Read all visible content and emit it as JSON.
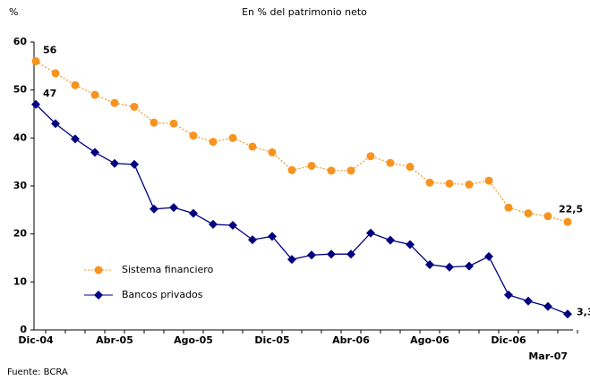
{
  "chart_data": {
    "type": "line",
    "title": "En % del patrimonio neto",
    "y_label": "%",
    "source": "Fuente: BCRA",
    "categories": [
      "Dic-04",
      null,
      null,
      null,
      "Abr-05",
      null,
      null,
      null,
      "Ago-05",
      null,
      null,
      null,
      "Dic-05",
      null,
      null,
      null,
      "Abr-06",
      null,
      null,
      null,
      "Ago-06",
      null,
      null,
      null,
      "Dic-06",
      null,
      null,
      "Mar-07"
    ],
    "series": [
      {
        "name": "Sistema financiero",
        "color": "#f7931e",
        "marker": "circle",
        "dash": "dotted",
        "values": [
          56,
          53.5,
          51,
          49,
          47.3,
          46.5,
          43.2,
          43,
          40.5,
          39.2,
          40,
          38.2,
          37,
          33.3,
          34.2,
          33.2,
          33.2,
          36.2,
          34.8,
          34,
          30.7,
          30.5,
          30.3,
          31.1,
          25.5,
          24.3,
          23.7,
          22.5
        ],
        "value_labels": [
          "56",
          null,
          null,
          null,
          null,
          null,
          null,
          null,
          null,
          null,
          null,
          null,
          null,
          null,
          null,
          null,
          null,
          null,
          null,
          null,
          null,
          null,
          null,
          null,
          null,
          null,
          null,
          "22,5"
        ]
      },
      {
        "name": "Bancos privados",
        "color": "#000080",
        "marker": "diamond",
        "dash": "solid",
        "values": [
          47,
          43,
          39.8,
          37,
          34.7,
          34.5,
          25.2,
          25.5,
          24.3,
          22,
          21.8,
          18.8,
          19.5,
          14.7,
          15.6,
          15.8,
          15.8,
          20.2,
          18.7,
          17.8,
          13.6,
          13.1,
          13.3,
          15.3,
          7.3,
          6,
          4.9,
          3.3
        ],
        "value_labels": [
          "47",
          null,
          null,
          null,
          null,
          null,
          null,
          null,
          null,
          null,
          null,
          null,
          null,
          null,
          null,
          null,
          null,
          null,
          null,
          null,
          null,
          null,
          null,
          null,
          null,
          null,
          null,
          "3,3"
        ]
      }
    ],
    "ylim": [
      0,
      60
    ],
    "yticks": [
      0,
      10,
      20,
      30,
      40,
      50,
      60
    ],
    "legend": "lower left",
    "grid": false
  }
}
